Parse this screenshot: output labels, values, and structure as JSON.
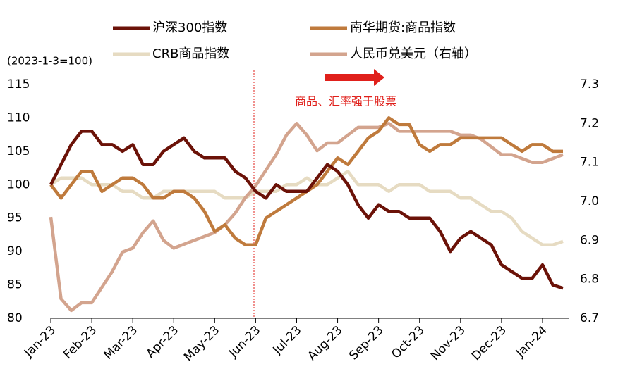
{
  "chart_data": {
    "type": "line",
    "axis_note": "(2023-1-3=100)",
    "annotation": "商品、汇率强于股票",
    "categories": [
      "Jan-23",
      null,
      null,
      null,
      "Feb-23",
      null,
      null,
      null,
      "Mar-23",
      null,
      null,
      null,
      "Apr-23",
      null,
      null,
      null,
      "May-23",
      null,
      null,
      null,
      "Jun-23",
      null,
      null,
      null,
      "Jul-23",
      null,
      null,
      null,
      "Aug-23",
      null,
      null,
      null,
      "Sep-23",
      null,
      null,
      null,
      "Oct-23",
      null,
      null,
      null,
      "Nov-23",
      null,
      null,
      null,
      "Dec-23",
      null,
      null,
      null,
      "Jan-24",
      null,
      null
    ],
    "series": [
      {
        "name": "沪深300指数",
        "color": "#6b1208",
        "values": [
          100,
          103,
          106,
          108,
          108,
          106,
          106,
          105,
          106,
          103,
          103,
          105,
          106,
          107,
          105,
          104,
          104,
          104,
          102,
          101,
          99,
          98,
          100,
          99,
          99,
          99,
          101,
          103,
          102,
          100,
          97,
          95,
          97,
          96,
          96,
          95,
          95,
          95,
          93,
          90,
          92,
          93,
          92,
          91,
          88,
          87,
          86,
          86,
          88,
          85,
          84.5
        ]
      },
      {
        "name": "南华期货:商品指数",
        "color": "#bf7a3c",
        "values": [
          100,
          98,
          100,
          102,
          102,
          99,
          100,
          101,
          101,
          100,
          98,
          98,
          99,
          99,
          98,
          96,
          93,
          94,
          92,
          91,
          91,
          95,
          96,
          97,
          98,
          99,
          100,
          102,
          104,
          103,
          105,
          107,
          108,
          110,
          109,
          109,
          106,
          105,
          106,
          106,
          107,
          107,
          107,
          107,
          107,
          106,
          105,
          106,
          106,
          105,
          105
        ]
      },
      {
        "name": "CRB商品指数",
        "color": "#e6dbc2",
        "values": [
          100,
          101,
          101,
          101,
          100,
          100,
          100,
          99,
          99,
          98,
          98,
          99,
          99,
          99,
          99,
          99,
          99,
          98,
          98,
          98,
          99,
          99,
          99,
          100,
          100,
          101,
          100,
          100,
          101,
          102,
          100,
          100,
          100,
          99,
          100,
          100,
          100,
          99,
          99,
          99,
          98,
          98,
          97,
          96,
          96,
          95,
          93,
          92,
          91,
          91,
          91.5
        ]
      },
      {
        "name": "人民币兑美元（右轴）",
        "color": "#d3a48e",
        "axis": "y2",
        "values": [
          6.96,
          6.75,
          6.72,
          6.74,
          6.74,
          6.78,
          6.82,
          6.87,
          6.88,
          6.92,
          6.95,
          6.9,
          6.88,
          6.89,
          6.9,
          6.91,
          6.92,
          6.94,
          6.97,
          7.01,
          7.04,
          7.08,
          7.12,
          7.17,
          7.2,
          7.17,
          7.13,
          7.15,
          7.15,
          7.17,
          7.19,
          7.19,
          7.19,
          7.2,
          7.18,
          7.18,
          7.18,
          7.18,
          7.18,
          7.18,
          7.17,
          7.17,
          7.16,
          7.14,
          7.12,
          7.12,
          7.11,
          7.1,
          7.1,
          7.11,
          7.12
        ]
      }
    ],
    "ylim": [
      80,
      115
    ],
    "yticks": [
      80,
      85,
      90,
      95,
      100,
      105,
      110,
      115
    ],
    "y2lim": [
      6.7,
      7.3
    ],
    "y2ticks": [
      6.7,
      6.8,
      6.9,
      {
        "value": 7,
        "label": "7.0"
      },
      7.1,
      7.2,
      7.3
    ]
  }
}
